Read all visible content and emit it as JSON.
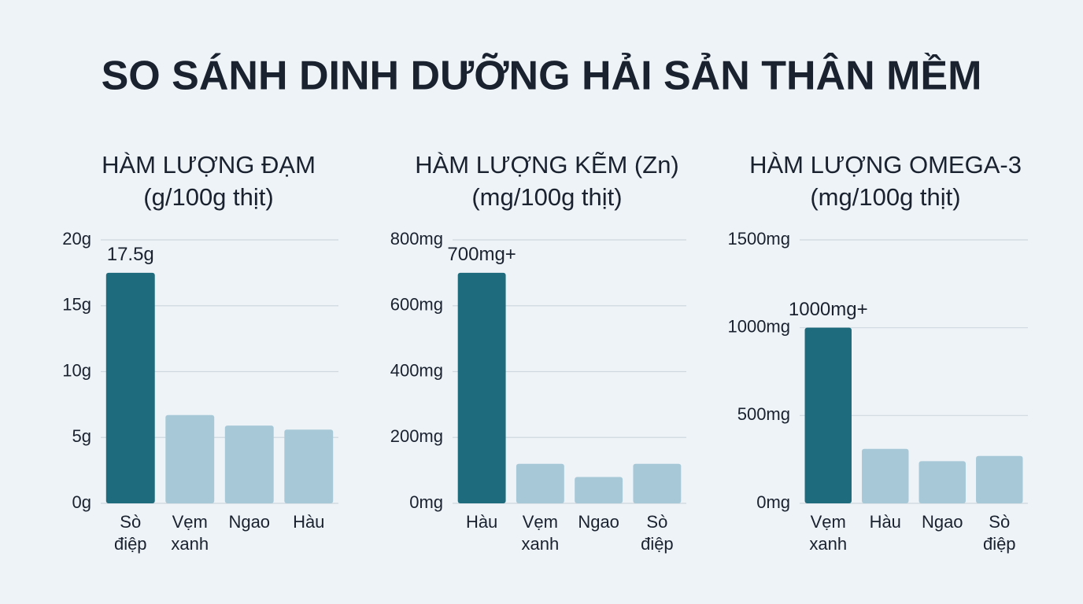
{
  "title": "SO SÁNH DINH DƯỠNG HẢI SẢN THÂN MỀM",
  "chart_data": [
    {
      "type": "bar",
      "title": "HÀM LƯỢNG ĐẠM",
      "subtitle": "(g/100g thịt)",
      "categories": [
        "Sò điệp",
        "Vẹm xanh",
        "Ngao",
        "Hàu"
      ],
      "values": [
        17.5,
        6.7,
        5.9,
        5.6
      ],
      "value_labels": [
        "17.5g",
        null,
        null,
        null
      ],
      "colors": [
        "#1d6b7c",
        "#a7c9d7",
        "#a7c9d7",
        "#a7c9d7"
      ],
      "ylim": [
        0,
        20
      ],
      "yticks": [
        {
          "value": 0,
          "label": "0g"
        },
        {
          "value": 5,
          "label": "5g"
        },
        {
          "value": 10,
          "label": "10g"
        },
        {
          "value": 15,
          "label": "15g"
        },
        {
          "value": 20,
          "label": "20g"
        }
      ],
      "grid": true
    },
    {
      "type": "bar",
      "title": "HÀM LƯỢNG KẼM (Zn)",
      "subtitle": "(mg/100g thịt)",
      "categories": [
        "Hàu",
        "Vẹm xanh",
        "Ngao",
        "Sò điệp"
      ],
      "values": [
        700,
        120,
        80,
        120
      ],
      "value_labels": [
        "700mg+",
        null,
        null,
        null
      ],
      "colors": [
        "#1d6b7c",
        "#a7c9d7",
        "#a7c9d7",
        "#a7c9d7"
      ],
      "ylim": [
        0,
        800
      ],
      "yticks": [
        {
          "value": 0,
          "label": "0mg"
        },
        {
          "value": 200,
          "label": "200mg"
        },
        {
          "value": 400,
          "label": "400mg"
        },
        {
          "value": 600,
          "label": "600mg"
        },
        {
          "value": 800,
          "label": "800mg"
        }
      ],
      "grid": true
    },
    {
      "type": "bar",
      "title": "HÀM LƯỢNG OMEGA-3",
      "subtitle": "(mg/100g thịt)",
      "categories": [
        "Vẹm xanh",
        "Hàu",
        "Ngao",
        "Sò điệp"
      ],
      "values": [
        1000,
        310,
        240,
        270
      ],
      "value_labels": [
        "1000mg+",
        null,
        null,
        null
      ],
      "colors": [
        "#1d6b7c",
        "#a7c9d7",
        "#a7c9d7",
        "#a7c9d7"
      ],
      "ylim": [
        0,
        1500
      ],
      "yticks": [
        {
          "value": 0,
          "label": "0mg"
        },
        {
          "value": 500,
          "label": "500mg"
        },
        {
          "value": 1000,
          "label": "1000mg"
        },
        {
          "value": 1500,
          "label": "1500mg"
        }
      ],
      "grid": true
    }
  ]
}
